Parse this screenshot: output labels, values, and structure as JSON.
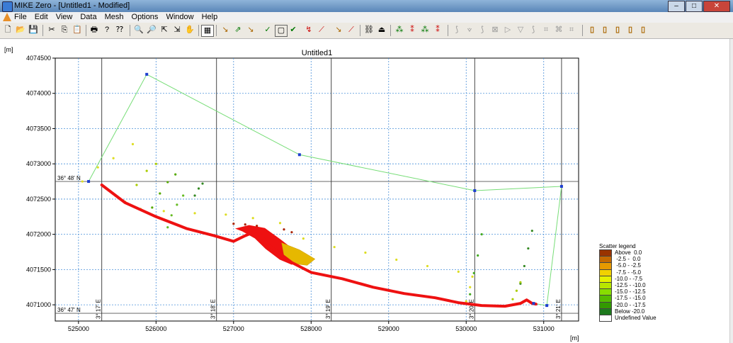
{
  "window": {
    "title": "MIKE Zero - [Untitled1 - Modified]",
    "controls": [
      "–",
      "□",
      "✕"
    ]
  },
  "menu": [
    "File",
    "Edit",
    "View",
    "Data",
    "Mesh",
    "Options",
    "Window",
    "Help"
  ],
  "toolbar": {
    "file": [
      "🗋",
      "📂",
      "💾"
    ],
    "edit": [
      "✂",
      "⎘",
      "📋"
    ],
    "print": [
      "🖶",
      "?",
      "⁇"
    ],
    "view": [
      "🔍",
      "🔎",
      "⇱",
      "⇲",
      "✋"
    ],
    "grid": [
      "▦"
    ],
    "mesh": [
      "↘",
      "⇗",
      "↘",
      "✓",
      "▢",
      "✔",
      "↯",
      "⟋",
      "↘",
      "⟋"
    ],
    "find": [
      "⛓",
      "⏏"
    ],
    "points": [
      "⁂",
      "⁑",
      "⁂",
      "⁑"
    ],
    "analysis": [
      "⟆",
      "⟇",
      "⟆",
      "⊠",
      "▷",
      "▽",
      "⟆",
      "⌗",
      "⌘",
      "⌗"
    ],
    "doc": [
      "▯",
      "▯",
      "▯",
      "▯",
      "▯"
    ]
  },
  "chart_data": {
    "type": "scatter",
    "title": "Untitled1",
    "xlabel": "[m]",
    "ylabel": "[m]",
    "xlim": [
      524700,
      531450
    ],
    "ylim": [
      4070770,
      4074500
    ],
    "x_ticks": [
      525000,
      526000,
      527000,
      528000,
      529000,
      530000,
      531000
    ],
    "y_ticks": [
      4071000,
      4071500,
      4072000,
      4072500,
      4073000,
      4073500,
      4074000,
      4074500
    ],
    "x_tick_labels": [
      "525000",
      "526000",
      "527000",
      "528000",
      "529000",
      "530000",
      "531000"
    ],
    "y_tick_labels": [
      "4071000",
      "4071500",
      "4072000",
      "4072500",
      "4073000",
      "4073500",
      "4074000",
      "4074500"
    ],
    "grid": true,
    "lat_labels": [
      {
        "text": "36° 48' N",
        "y": 4072750
      },
      {
        "text": "36° 47' N",
        "y": 4070880
      }
    ],
    "lon_labels": [
      {
        "text": "3° 17' E",
        "x": 525300
      },
      {
        "text": "3° 18' E",
        "x": 526780
      },
      {
        "text": "3° 19' E",
        "x": 528260
      },
      {
        "text": "3° 20' E",
        "x": 530110
      },
      {
        "text": "3° 21' E",
        "x": 531230
      }
    ],
    "boundary": {
      "color": "#77dd77",
      "points": [
        [
          525130,
          4072750
        ],
        [
          525880,
          4074270
        ],
        [
          527850,
          4073130
        ],
        [
          530110,
          4072620
        ],
        [
          531230,
          4072680
        ],
        [
          531040,
          4070990
        ],
        [
          530870,
          4071020
        ]
      ]
    },
    "coastline": {
      "color": "#ee1111",
      "points": [
        [
          525300,
          4072700
        ],
        [
          525600,
          4072450
        ],
        [
          526000,
          4072250
        ],
        [
          526400,
          4072080
        ],
        [
          526750,
          4071980
        ],
        [
          527000,
          4071900
        ],
        [
          527150,
          4071980
        ],
        [
          527300,
          4072050
        ],
        [
          527450,
          4071850
        ],
        [
          527750,
          4071600
        ],
        [
          528000,
          4071460
        ],
        [
          528400,
          4071370
        ],
        [
          528800,
          4071250
        ],
        [
          529200,
          4071160
        ],
        [
          529600,
          4071100
        ],
        [
          529900,
          4071030
        ],
        [
          530200,
          4070990
        ],
        [
          530500,
          4070980
        ],
        [
          530700,
          4071020
        ],
        [
          530780,
          4071070
        ],
        [
          530850,
          4071020
        ],
        [
          530900,
          4071010
        ]
      ]
    },
    "dense_lobe": {
      "color": "#ee1111",
      "points": [
        [
          527050,
          4072080
        ],
        [
          527200,
          4072120
        ],
        [
          527400,
          4072080
        ],
        [
          527600,
          4071920
        ],
        [
          527800,
          4071750
        ],
        [
          527900,
          4071640
        ],
        [
          527750,
          4071580
        ],
        [
          527600,
          4071650
        ],
        [
          527420,
          4071800
        ],
        [
          527280,
          4071950
        ],
        [
          527120,
          4072050
        ]
      ]
    },
    "depression_fill": {
      "color": "#e6b800",
      "points": [
        [
          527620,
          4071880
        ],
        [
          527850,
          4071780
        ],
        [
          528050,
          4071650
        ],
        [
          527950,
          4071560
        ],
        [
          527800,
          4071580
        ],
        [
          527650,
          4071700
        ]
      ]
    },
    "scatter_tracks": [
      {
        "color": "#dddd22",
        "points": [
          [
            525050,
            4072750
          ],
          [
            525250,
            4072950
          ],
          [
            525450,
            4073080
          ],
          [
            525700,
            4073280
          ]
        ]
      },
      {
        "color": "#aacc00",
        "points": [
          [
            525600,
            4072460
          ],
          [
            525750,
            4072700
          ],
          [
            525880,
            4072900
          ],
          [
            526000,
            4073000
          ]
        ]
      },
      {
        "color": "#55aa00",
        "points": [
          [
            525950,
            4072380
          ],
          [
            526050,
            4072580
          ],
          [
            526150,
            4072740
          ],
          [
            526250,
            4072850
          ]
        ]
      },
      {
        "color": "#66bb22",
        "points": [
          [
            526150,
            4072100
          ],
          [
            526200,
            4072270
          ],
          [
            526270,
            4072420
          ],
          [
            526350,
            4072550
          ]
        ]
      },
      {
        "color": "#338822",
        "points": [
          [
            526500,
            4072550
          ],
          [
            526550,
            4072650
          ],
          [
            526600,
            4072720
          ]
        ]
      },
      {
        "color": "#dddd22",
        "points": [
          [
            525800,
            4072360
          ],
          [
            526100,
            4072330
          ],
          [
            526500,
            4072300
          ],
          [
            526900,
            4072280
          ],
          [
            527250,
            4072230
          ],
          [
            527600,
            4072160
          ]
        ]
      },
      {
        "color": "#dddd22",
        "points": [
          [
            527900,
            4071940
          ],
          [
            528300,
            4071820
          ],
          [
            528700,
            4071740
          ],
          [
            529100,
            4071640
          ],
          [
            529500,
            4071550
          ],
          [
            529900,
            4071470
          ]
        ]
      },
      {
        "color": "#aa2200",
        "points": [
          [
            527000,
            4072150
          ],
          [
            527150,
            4072140
          ],
          [
            527300,
            4072120
          ],
          [
            527650,
            4072070
          ],
          [
            527750,
            4072030
          ]
        ]
      },
      {
        "color": "#44aa22",
        "points": [
          [
            530050,
            4071150
          ],
          [
            530100,
            4071450
          ],
          [
            530150,
            4071700
          ],
          [
            530200,
            4072000
          ]
        ]
      },
      {
        "color": "#dddd22",
        "points": [
          [
            530000,
            4071050
          ],
          [
            530050,
            4071250
          ],
          [
            530080,
            4071400
          ]
        ]
      },
      {
        "color": "#338822",
        "points": [
          [
            530700,
            4071300
          ],
          [
            530750,
            4071550
          ],
          [
            530800,
            4071800
          ],
          [
            530850,
            4072050
          ]
        ]
      },
      {
        "color": "#aacc00",
        "points": [
          [
            530600,
            4071080
          ],
          [
            530650,
            4071200
          ],
          [
            530700,
            4071320
          ]
        ]
      }
    ],
    "vertices": [
      [
        525130,
        4072750
      ],
      [
        525880,
        4074270
      ],
      [
        527850,
        4073130
      ],
      [
        530110,
        4072620
      ],
      [
        531230,
        4072680
      ],
      [
        531040,
        4070990
      ],
      [
        530870,
        4071020
      ]
    ],
    "legend": {
      "title": "Scatter legend",
      "placement": "right",
      "entries": [
        {
          "label": "Above  0.0",
          "color": "#993300"
        },
        {
          "label": " -2.5 -  0.0",
          "color": "#c46a00"
        },
        {
          "label": " -5.0 - -2.5",
          "color": "#e69a00"
        },
        {
          "label": " -7.5 - -5.0",
          "color": "#f2d200"
        },
        {
          "label": "-10.0 - -7.5",
          "color": "#e6f200"
        },
        {
          "label": "-12.5 - -10.0",
          "color": "#b8e600"
        },
        {
          "label": "-15.0 - -12.5",
          "color": "#88dd00"
        },
        {
          "label": "-17.5 - -15.0",
          "color": "#55bb00"
        },
        {
          "label": "-20.0 - -17.5",
          "color": "#339900"
        },
        {
          "label": "Below -20.0",
          "color": "#1e7a1e"
        },
        {
          "label": "Undefined Value",
          "color": "#ffffff"
        }
      ]
    }
  }
}
